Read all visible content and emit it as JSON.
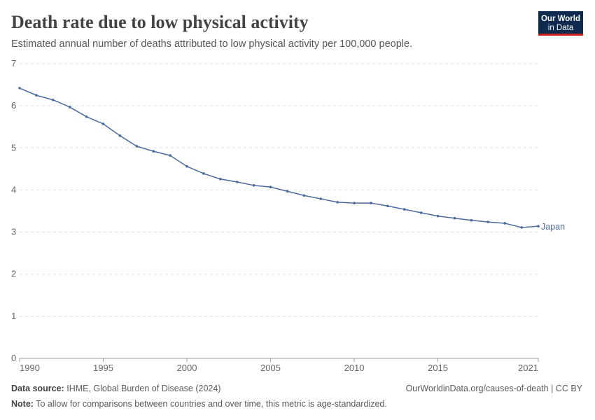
{
  "chart_data": {
    "type": "line",
    "title": "Death rate due to low physical activity",
    "subtitle": "Estimated annual number of deaths attributed to low physical activity per 100,000 people.",
    "logo": [
      "Our World",
      "in Data"
    ],
    "x": [
      1990,
      1991,
      1992,
      1993,
      1994,
      1995,
      1996,
      1997,
      1998,
      1999,
      2000,
      2001,
      2002,
      2003,
      2004,
      2005,
      2006,
      2007,
      2008,
      2009,
      2010,
      2011,
      2012,
      2013,
      2014,
      2015,
      2016,
      2017,
      2018,
      2019,
      2020,
      2021
    ],
    "series": [
      {
        "name": "Japan",
        "color": "#4c6a9c",
        "values": [
          6.42,
          6.25,
          6.14,
          5.97,
          5.74,
          5.57,
          5.29,
          5.04,
          4.92,
          4.82,
          4.56,
          4.39,
          4.26,
          4.19,
          4.11,
          4.07,
          3.97,
          3.87,
          3.79,
          3.71,
          3.69,
          3.69,
          3.62,
          3.54,
          3.46,
          3.38,
          3.33,
          3.28,
          3.24,
          3.21,
          3.11,
          3.14
        ]
      }
    ],
    "xlim": [
      1990,
      2021
    ],
    "xticks": [
      1990,
      1995,
      2000,
      2005,
      2010,
      2015,
      2021
    ],
    "ylim": [
      0,
      7
    ],
    "yticks": [
      0,
      1,
      2,
      3,
      4,
      5,
      6,
      7
    ],
    "grid": true,
    "source_label": "Data source:",
    "source": "IHME, Global Burden of Disease (2024)",
    "url": "OurWorldinData.org/causes-of-death | CC BY",
    "note_label": "Note:",
    "note": "To allow for comparisons between countries and over time, this metric is age-standardized."
  }
}
